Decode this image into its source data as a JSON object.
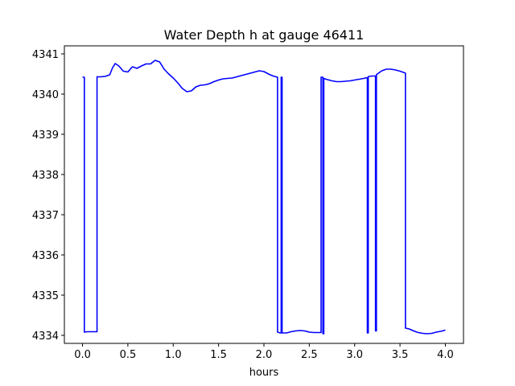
{
  "chart_data": {
    "type": "line",
    "title": "Water Depth h at gauge 46411",
    "xlabel": "hours",
    "ylabel": "",
    "xlim": [
      -0.2,
      4.2
    ],
    "ylim": [
      4333.8,
      4341.2
    ],
    "xticks": [
      0.0,
      0.5,
      1.0,
      1.5,
      2.0,
      2.5,
      3.0,
      3.5,
      4.0
    ],
    "xtick_labels": [
      "0.0",
      "0.5",
      "1.0",
      "1.5",
      "2.0",
      "2.5",
      "3.0",
      "3.5",
      "4.0"
    ],
    "yticks": [
      4334,
      4335,
      4336,
      4337,
      4338,
      4339,
      4340,
      4341
    ],
    "ytick_labels": [
      "4334",
      "4335",
      "4336",
      "4337",
      "4338",
      "4339",
      "4340",
      "4341"
    ],
    "grid": false,
    "series": [
      {
        "color": "#0000ff",
        "x": [
          0.0,
          0.02,
          0.02,
          0.05,
          0.1,
          0.16,
          0.16,
          0.2,
          0.25,
          0.3,
          0.33,
          0.36,
          0.4,
          0.45,
          0.5,
          0.55,
          0.6,
          0.65,
          0.7,
          0.75,
          0.8,
          0.85,
          0.9,
          0.95,
          1.0,
          1.05,
          1.1,
          1.15,
          1.2,
          1.25,
          1.3,
          1.35,
          1.4,
          1.45,
          1.5,
          1.55,
          1.6,
          1.65,
          1.7,
          1.75,
          1.8,
          1.85,
          1.9,
          1.95,
          2.0,
          2.05,
          2.1,
          2.15,
          2.15,
          2.18,
          2.19,
          2.19,
          2.2,
          2.2,
          2.25,
          2.3,
          2.35,
          2.4,
          2.45,
          2.5,
          2.55,
          2.6,
          2.63,
          2.63,
          2.65,
          2.65,
          2.66,
          2.66,
          2.7,
          2.75,
          2.8,
          2.85,
          2.9,
          2.95,
          3.0,
          3.05,
          3.1,
          3.14,
          3.14,
          3.15,
          3.15,
          3.16,
          3.16,
          3.2,
          3.23,
          3.23,
          3.24,
          3.24,
          3.25,
          3.3,
          3.35,
          3.4,
          3.45,
          3.5,
          3.55,
          3.56,
          3.56,
          3.6,
          3.65,
          3.7,
          3.75,
          3.8,
          3.85,
          3.9,
          3.95,
          4.0
        ],
        "y": [
          4340.42,
          4340.42,
          4334.08,
          4334.09,
          4334.09,
          4334.09,
          4340.43,
          4340.43,
          4340.44,
          4340.48,
          4340.65,
          4340.76,
          4340.7,
          4340.57,
          4340.55,
          4340.68,
          4340.64,
          4340.7,
          4340.75,
          4340.75,
          4340.84,
          4340.8,
          4340.62,
          4340.5,
          4340.4,
          4340.28,
          4340.14,
          4340.06,
          4340.08,
          4340.18,
          4340.22,
          4340.23,
          4340.26,
          4340.31,
          4340.35,
          4340.38,
          4340.39,
          4340.4,
          4340.43,
          4340.46,
          4340.49,
          4340.52,
          4340.55,
          4340.58,
          4340.56,
          4340.5,
          4340.45,
          4340.42,
          4334.08,
          4334.06,
          4334.06,
          4340.42,
          4340.42,
          4334.06,
          4334.06,
          4334.09,
          4334.11,
          4334.12,
          4334.11,
          4334.08,
          4334.07,
          4334.07,
          4334.07,
          4340.42,
          4340.42,
          4334.04,
          4334.04,
          4340.39,
          4340.36,
          4340.33,
          4340.31,
          4340.31,
          4340.32,
          4340.33,
          4340.35,
          4340.37,
          4340.39,
          4340.41,
          4334.06,
          4334.06,
          4340.43,
          4340.44,
          4340.44,
          4340.45,
          4340.45,
          4334.11,
          4334.11,
          4340.48,
          4340.5,
          4340.58,
          4340.62,
          4340.62,
          4340.6,
          4340.57,
          4340.53,
          4340.52,
          4334.18,
          4334.16,
          4334.11,
          4334.07,
          4334.05,
          4334.04,
          4334.05,
          4334.08,
          4334.1,
          4334.13
        ]
      }
    ]
  }
}
